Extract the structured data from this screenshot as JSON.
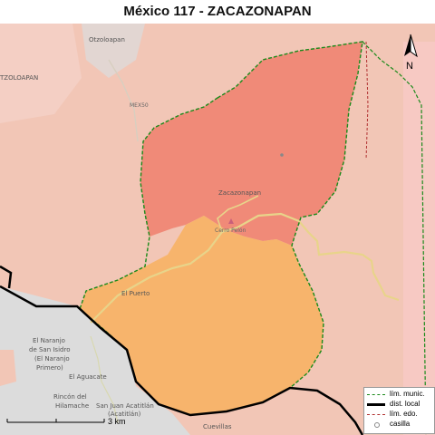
{
  "title": "México 117 - ZACAZONAPAN",
  "places": {
    "otzoloapan": "Otzoloapan",
    "tzoloapan": "TZOLOAPAN",
    "mex50": "MEX50",
    "zacazonapan": "Zacazonapan",
    "cerro_pelon": "Cerro Pelón",
    "el_puerto": "El Puerto",
    "el_naranjo": "El Naranjo",
    "de_san_isidro": "de San Isidro",
    "el_naranjo_paren": "(El Naranjo",
    "primero": "Primero)",
    "el_aguacate": "El Aguacate",
    "rincon": "Rincón del",
    "hilamache": "Hilamache",
    "san_juan": "San Juan Acatitlán",
    "acatitlan": "(Acatitlán)",
    "cuevillas": "Cuevillas"
  },
  "scale_label": "3 km",
  "north_label": "N",
  "legend": {
    "items": [
      {
        "label": "lím. munic.",
        "symbol": "dashed-green-line",
        "color": "#1a8a1a"
      },
      {
        "label": "dist. local",
        "symbol": "thick-black-line",
        "color": "#000000"
      },
      {
        "label": "lím. edo.",
        "symbol": "dashed-red-line",
        "color": "#b03030"
      },
      {
        "label": "casilla",
        "symbol": "circle-marker",
        "color": "#888888"
      }
    ]
  },
  "colors": {
    "section_north": "#f08a78",
    "section_south": "#f7b46c",
    "surround": "#f2c6b6",
    "right_strip": "#f7c9c3",
    "gray_area": "#dcdcdc",
    "municipal_line": "#1a8a1a",
    "district_line": "#000000",
    "road": "#e8d48a"
  }
}
